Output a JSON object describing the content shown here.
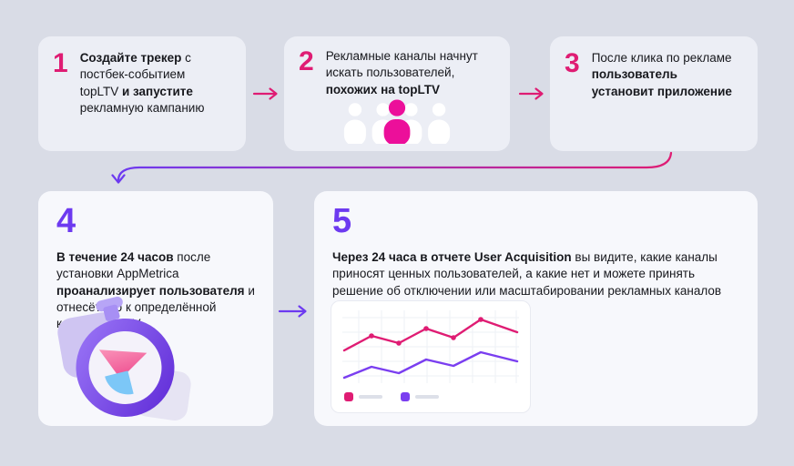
{
  "page": {
    "background": "#d9dce6"
  },
  "colors": {
    "magenta": "#df1c73",
    "pink_person": "#ec0f9a",
    "purple": "#6d3af0",
    "card_top_bg": "#eceef5",
    "card_bottom_bg": "#f7f8fc",
    "text": "#17181d",
    "chart_line_pink": "#df1c73",
    "chart_line_purple": "#7a3ef0",
    "chart_card_bg": "#ffffff"
  },
  "steps": [
    {
      "number": "1",
      "segments": [
        {
          "t": "Создайте трекер",
          "b": true
        },
        {
          "t": " с постбек-событием topLTV ",
          "b": false
        },
        {
          "t": "и запустите",
          "b": true
        },
        {
          "t": " рекламную кампанию",
          "b": false
        }
      ]
    },
    {
      "number": "2",
      "segments": [
        {
          "t": "Рекламные каналы начнут искать пользователей, ",
          "b": false
        },
        {
          "t": "похожих на topLTV",
          "b": true
        }
      ]
    },
    {
      "number": "3",
      "segments": [
        {
          "t": "После клика по рекламе ",
          "b": false
        },
        {
          "t": "пользователь установит приложение",
          "b": true
        }
      ]
    },
    {
      "number": "4",
      "segments": [
        {
          "t": "В течение 24 часов",
          "b": true
        },
        {
          "t": " после установки AppMetrica ",
          "b": false
        },
        {
          "t": "проанализирует пользователя",
          "b": true
        },
        {
          "t": " и отнесёт его к определённой когорте по LTV",
          "b": false
        }
      ]
    },
    {
      "number": "5",
      "segments": [
        {
          "t": "Через 24 часа в отчете User Acquisition",
          "b": true
        },
        {
          "t": " вы видите, какие каналы приносят ценных пользователей, а какие нет и можете принять решение об отключении или масштабировании рекламных каналов",
          "b": false
        }
      ]
    }
  ],
  "icons": {
    "arrow_right": "arrow-right",
    "curved_arrow": "curved-arrow-down",
    "users_group": "users-group",
    "stopwatch": "stopwatch-3d",
    "line_chart": "line-chart"
  }
}
